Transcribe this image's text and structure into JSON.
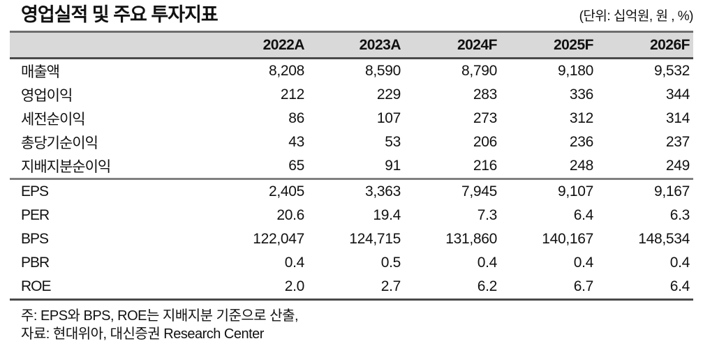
{
  "title": "영업실적 및 주요 투자지표",
  "unit_label": "(단위: 십억원, 원 , %)",
  "table": {
    "columns": [
      "2022A",
      "2023A",
      "2024F",
      "2025F",
      "2026F"
    ],
    "sections": [
      {
        "rows": [
          {
            "label": "매출액",
            "values": [
              "8,208",
              "8,590",
              "8,790",
              "9,180",
              "9,532"
            ]
          },
          {
            "label": "영업이익",
            "values": [
              "212",
              "229",
              "283",
              "336",
              "344"
            ]
          },
          {
            "label": "세전순이익",
            "values": [
              "86",
              "107",
              "273",
              "312",
              "314"
            ]
          },
          {
            "label": "총당기순이익",
            "values": [
              "43",
              "53",
              "206",
              "236",
              "237"
            ]
          },
          {
            "label": "지배지분순이익",
            "values": [
              "65",
              "91",
              "216",
              "248",
              "249"
            ]
          }
        ]
      },
      {
        "rows": [
          {
            "label": "EPS",
            "values": [
              "2,405",
              "3,363",
              "7,945",
              "9,107",
              "9,167"
            ]
          },
          {
            "label": "PER",
            "values": [
              "20.6",
              "19.4",
              "7.3",
              "6.4",
              "6.3"
            ]
          },
          {
            "label": "BPS",
            "values": [
              "122,047",
              "124,715",
              "131,860",
              "140,167",
              "148,534"
            ]
          },
          {
            "label": "PBR",
            "values": [
              "0.4",
              "0.5",
              "0.4",
              "0.4",
              "0.4"
            ]
          },
          {
            "label": "ROE",
            "values": [
              "2.0",
              "2.7",
              "6.2",
              "6.7",
              "6.4"
            ]
          }
        ]
      }
    ]
  },
  "notes": [
    "주: EPS와 BPS, ROE는 지배지분 기준으로 산출,",
    "자료: 현대위아, 대신증권 Research Center"
  ],
  "colors": {
    "header_bg": "#d9d9d9",
    "rule_top": "#6e6e6e",
    "rule_dark": "#4a4a4a",
    "rule_section": "#808080",
    "text": "#111111"
  },
  "chart_data": {
    "type": "table",
    "title": "영업실적 및 주요 투자지표",
    "unit": "단위: 십억원, 원, %",
    "columns": [
      "2022A",
      "2023A",
      "2024F",
      "2025F",
      "2026F"
    ],
    "rows": [
      {
        "label": "매출액",
        "values": [
          8208,
          8590,
          8790,
          9180,
          9532
        ]
      },
      {
        "label": "영업이익",
        "values": [
          212,
          229,
          283,
          336,
          344
        ]
      },
      {
        "label": "세전순이익",
        "values": [
          86,
          107,
          273,
          312,
          314
        ]
      },
      {
        "label": "총당기순이익",
        "values": [
          43,
          53,
          206,
          236,
          237
        ]
      },
      {
        "label": "지배지분순이익",
        "values": [
          65,
          91,
          216,
          248,
          249
        ]
      },
      {
        "label": "EPS",
        "values": [
          2405,
          3363,
          7945,
          9107,
          9167
        ]
      },
      {
        "label": "PER",
        "values": [
          20.6,
          19.4,
          7.3,
          6.4,
          6.3
        ]
      },
      {
        "label": "BPS",
        "values": [
          122047,
          124715,
          131860,
          140167,
          148534
        ]
      },
      {
        "label": "PBR",
        "values": [
          0.4,
          0.5,
          0.4,
          0.4,
          0.4
        ]
      },
      {
        "label": "ROE",
        "values": [
          2.0,
          2.7,
          6.2,
          6.7,
          6.4
        ]
      }
    ]
  }
}
